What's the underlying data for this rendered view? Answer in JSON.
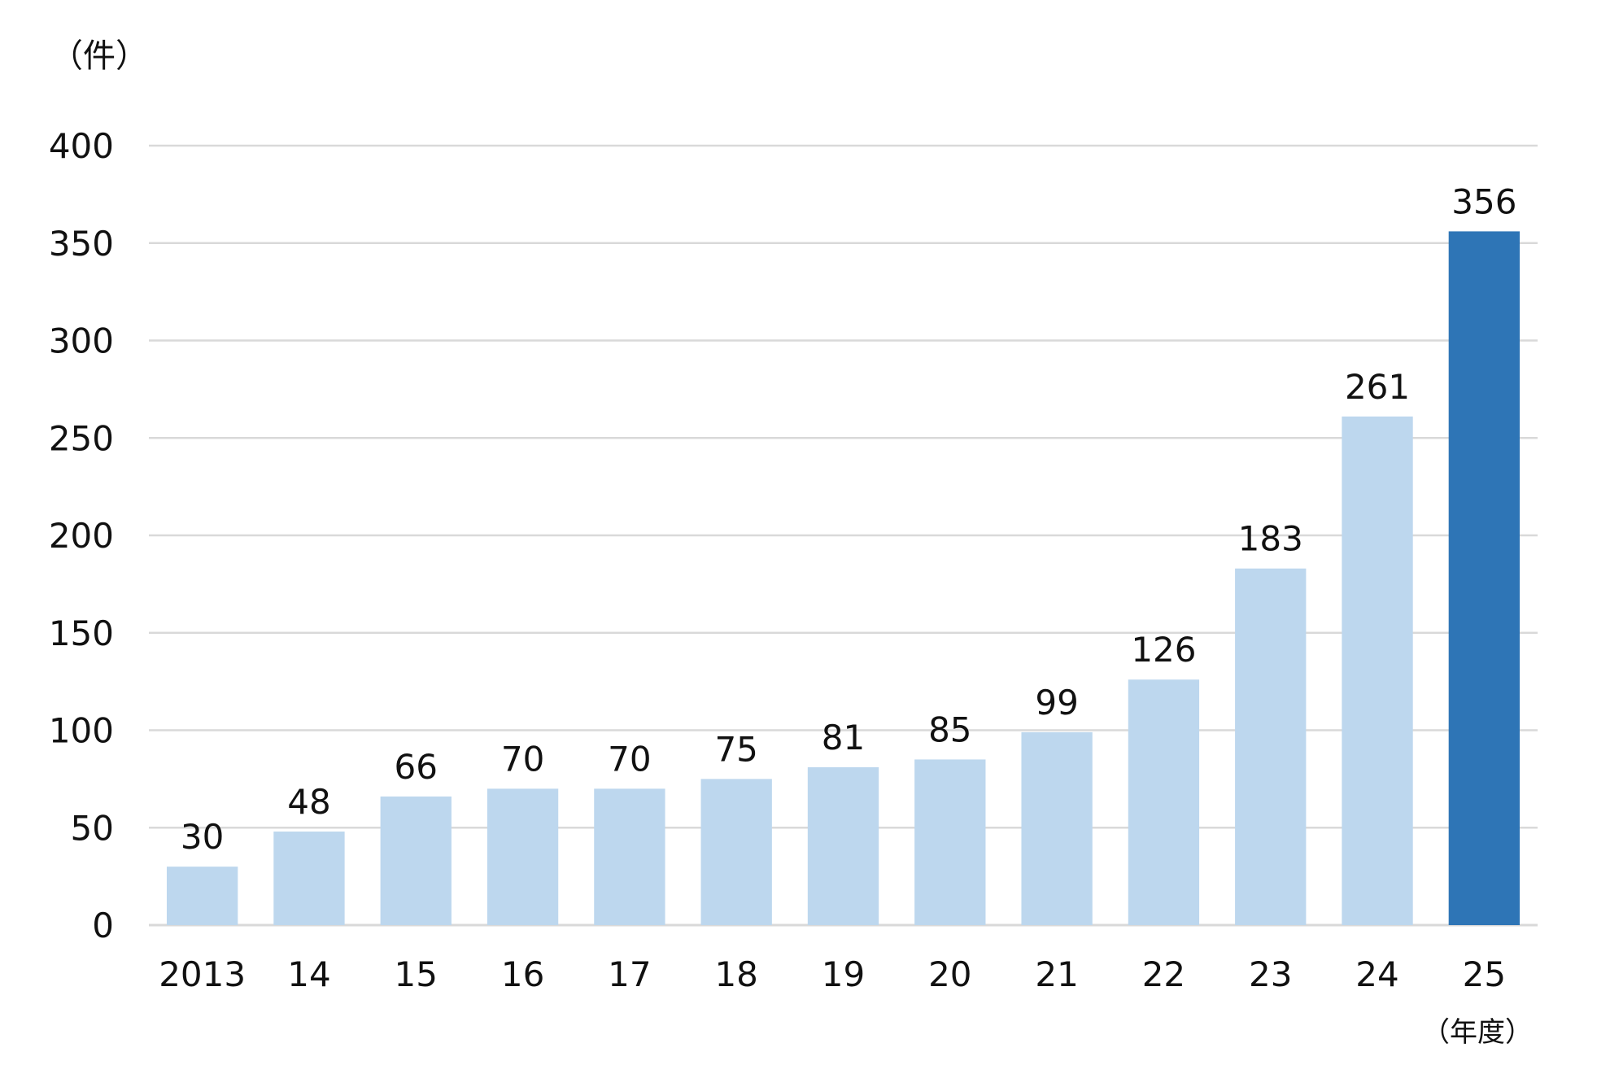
{
  "chart_data": {
    "type": "bar",
    "title": "",
    "xlabel": "",
    "ylabel": "",
    "y_unit_label": "（件）",
    "x_unit_label": "（年度）",
    "categories": [
      "2013",
      "14",
      "15",
      "16",
      "17",
      "18",
      "19",
      "20",
      "21",
      "22",
      "23",
      "24",
      "25"
    ],
    "values": [
      30,
      48,
      66,
      70,
      70,
      75,
      81,
      85,
      99,
      126,
      183,
      261,
      356
    ],
    "highlight_index": 12,
    "ylim": [
      0,
      400
    ],
    "yticks": [
      0,
      50,
      100,
      150,
      200,
      250,
      300,
      350,
      400
    ],
    "grid": true,
    "legend": "none",
    "colors": {
      "bar": "#BDD7EE",
      "bar_highlight": "#2E75B6",
      "grid": "#D9D9D9",
      "axis": "#D9D9D9"
    }
  }
}
